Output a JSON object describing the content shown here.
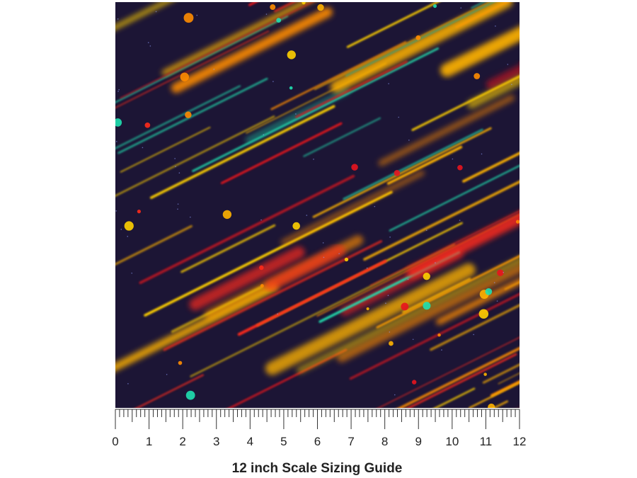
{
  "ruler": {
    "labels": [
      "0",
      "1",
      "2",
      "3",
      "4",
      "5",
      "6",
      "7",
      "8",
      "9",
      "10",
      "11",
      "12"
    ]
  },
  "caption": "12 inch Scale Sizing Guide"
}
